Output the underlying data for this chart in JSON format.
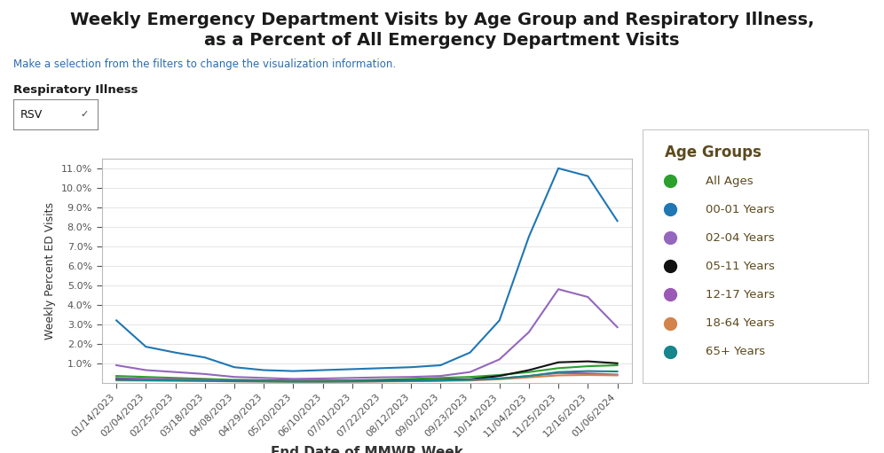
{
  "title_line1": "Weekly Emergency Department Visits by Age Group and Respiratory Illness,",
  "title_line2": "as a Percent of All Emergency Department Visits",
  "subtitle": "Make a selection from the filters to change the visualization information.",
  "filter_label": "Respiratory Illness",
  "filter_value": "RSV",
  "xlabel": "End Date of MMWR Week",
  "ylabel": "Weekly Percent ED Visits",
  "ylim": [
    0,
    11.5
  ],
  "yticks": [
    1.0,
    2.0,
    3.0,
    4.0,
    5.0,
    6.0,
    7.0,
    8.0,
    9.0,
    10.0,
    11.0
  ],
  "ytick_labels": [
    "1.0%",
    "2.0%",
    "3.0%",
    "4.0%",
    "5.0%",
    "6.0%",
    "7.0%",
    "8.0%",
    "9.0%",
    "10.0%",
    "11.0%"
  ],
  "dates": [
    "01/14/2023",
    "02/04/2023",
    "02/25/2023",
    "03/18/2023",
    "04/08/2023",
    "04/29/2023",
    "05/20/2023",
    "06/10/2023",
    "07/01/2023",
    "07/22/2023",
    "08/12/2023",
    "09/02/2023",
    "09/23/2023",
    "10/14/2023",
    "11/04/2023",
    "11/25/2023",
    "12/16/2023",
    "01/06/2024"
  ],
  "series": {
    "All Ages": {
      "color": "#2ca02c",
      "data": [
        0.35,
        0.3,
        0.25,
        0.2,
        0.15,
        0.13,
        0.12,
        0.12,
        0.12,
        0.15,
        0.2,
        0.25,
        0.3,
        0.4,
        0.55,
        0.75,
        0.85,
        0.9
      ]
    },
    "00-01 Years": {
      "color": "#1f77b4",
      "data": [
        3.2,
        1.85,
        1.55,
        1.3,
        0.8,
        0.65,
        0.6,
        0.65,
        0.7,
        0.75,
        0.8,
        0.9,
        1.55,
        3.2,
        7.5,
        11.0,
        10.6,
        8.3
      ]
    },
    "02-04 Years": {
      "color": "#9467bd",
      "data": [
        0.9,
        0.65,
        0.55,
        0.45,
        0.3,
        0.25,
        0.2,
        0.22,
        0.25,
        0.28,
        0.3,
        0.35,
        0.55,
        1.2,
        2.6,
        4.8,
        4.4,
        2.85
      ]
    },
    "05-11 Years": {
      "color": "#111111",
      "data": [
        0.2,
        0.18,
        0.16,
        0.14,
        0.1,
        0.09,
        0.08,
        0.08,
        0.09,
        0.1,
        0.12,
        0.15,
        0.18,
        0.35,
        0.65,
        1.05,
        1.1,
        1.0
      ]
    },
    "12-17 Years": {
      "color": "#9b59b6",
      "data": [
        0.25,
        0.2,
        0.18,
        0.15,
        0.1,
        0.08,
        0.07,
        0.07,
        0.07,
        0.08,
        0.1,
        0.12,
        0.15,
        0.22,
        0.35,
        0.5,
        0.48,
        0.42
      ]
    },
    "18-64 Years": {
      "color": "#d2844a",
      "data": [
        0.12,
        0.11,
        0.1,
        0.09,
        0.07,
        0.06,
        0.05,
        0.05,
        0.06,
        0.07,
        0.08,
        0.1,
        0.12,
        0.18,
        0.28,
        0.38,
        0.4,
        0.38
      ]
    },
    "65+ Years": {
      "color": "#17868c",
      "data": [
        0.15,
        0.13,
        0.12,
        0.1,
        0.08,
        0.07,
        0.06,
        0.06,
        0.07,
        0.08,
        0.1,
        0.12,
        0.15,
        0.22,
        0.35,
        0.55,
        0.6,
        0.58
      ]
    }
  },
  "legend_title": "Age Groups",
  "bg_color": "#ffffff",
  "title_color": "#1a1a1a",
  "subtitle_color": "#2b6cb0",
  "legend_text_color": "#5c4a1e",
  "axis_label_color": "#333333",
  "tick_label_size": 8,
  "ylabel_fontsize": 9,
  "xlabel_fontsize": 11,
  "title_fontsize": 14
}
